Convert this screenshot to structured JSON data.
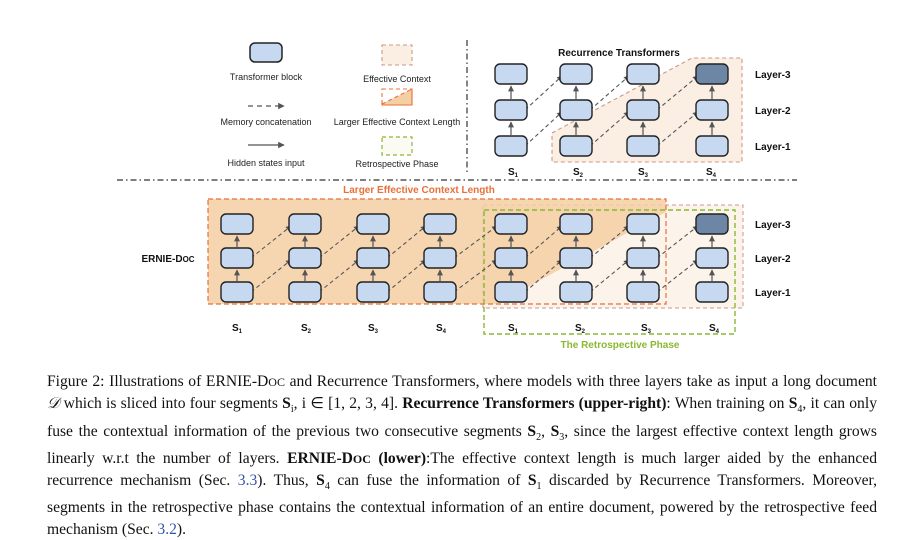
{
  "legend": {
    "transformer_block": "Transformer block",
    "memory_concatenation": "Memory concatenation",
    "hidden_states_input": "Hidden states input",
    "effective_context": "Effective Context",
    "larger_effective_context_length": "Larger Effective Context Length",
    "retrospective_phase": "Retrospective Phase"
  },
  "recurrence": {
    "title": "Recurrence Transformers",
    "layers": [
      "Layer-3",
      "Layer-2",
      "Layer-1"
    ],
    "segment_main": "S",
    "segments": [
      "1",
      "2",
      "3",
      "4"
    ]
  },
  "ernie": {
    "label_main": "ERNIE-D",
    "label_small": "OC",
    "banner": "Larger Effective Context Length",
    "retro_label": "The Retrospective Phase",
    "layers": [
      "Layer-3",
      "Layer-2",
      "Layer-1"
    ],
    "segment_main": "S",
    "segments": [
      "1",
      "2",
      "3",
      "4",
      "1",
      "2",
      "3",
      "4"
    ]
  },
  "colors": {
    "block_fill": "#c6d9f1",
    "block_dark": "#6e86a6",
    "orange": "#e8703a",
    "orange_fill": "#f4cfa3",
    "green": "#8ab833",
    "grey": "#777777"
  },
  "caption": {
    "t1": "Figure 2: Illustrations of ERNIE-D",
    "t1b": "OC",
    "t2": " and Recurrence Transformers, where models with three layers take as input a long document ",
    "D": "𝒟",
    "t3": " which is sliced into four segments ",
    "Si": "S",
    "Si_sub": "i",
    "t4": ", i ∈ [1, 2, 3, 4]. ",
    "b1": "Recurrence Transformers (upper-right)",
    "t5": ": When training on ",
    "S4a": "S",
    "S4a_sub": "4",
    "t6": ", it can only fuse the contextual information of the previous two consecutive segments ",
    "S2": "S",
    "S2_sub": "2",
    "comma": ", ",
    "S3": "S",
    "S3_sub": "3",
    "t7": ", since the largest effective context length grows linearly w.r.t the number of layers. ",
    "b2": "ERNIE-D",
    "b2s": "OC",
    "b2e": " (lower)",
    "t8": ":The effective context length is much larger aided by the enhanced recurrence mechanism (Sec. ",
    "ref1": "3.3",
    "t9": "). Thus, ",
    "S4b": "S",
    "S4b_sub": "4",
    "t10": " can fuse the information of ",
    "S1": "S",
    "S1_sub": "1",
    "t11": " discarded by Recurrence Transformers. Moreover, segments in the retrospective phase contains the contextual information of an entire document, powered by the retrospective feed mechanism (Sec. ",
    "ref2": "3.2",
    "t12": ")."
  }
}
